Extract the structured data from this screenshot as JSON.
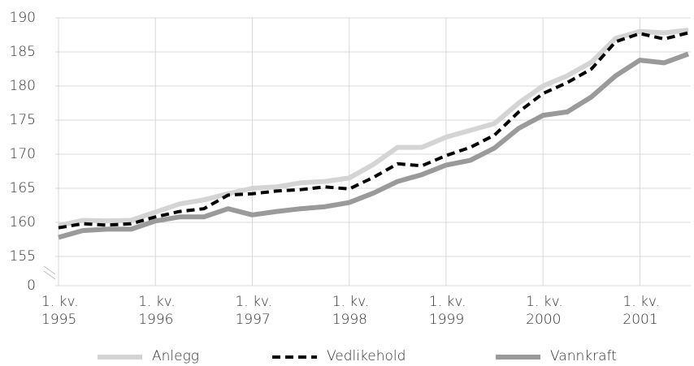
{
  "chart_data": {
    "type": "line",
    "categories": [
      [
        "1. kv.",
        "1995"
      ],
      null,
      null,
      null,
      [
        "1. kv.",
        "1996"
      ],
      null,
      null,
      null,
      [
        "1. kv.",
        "1997"
      ],
      null,
      null,
      null,
      [
        "1. kv.",
        "1998"
      ],
      null,
      null,
      null,
      [
        "1. kv.",
        "1999"
      ],
      null,
      null,
      null,
      [
        "1. kv.",
        "2000"
      ],
      null,
      null,
      null,
      [
        "1. kv.",
        "2001"
      ],
      null,
      null
    ],
    "series": [
      {
        "name": "Anlegg",
        "color": "#d4d4d4",
        "dashed": false,
        "values": [
          159.5,
          160.3,
          160.2,
          160.3,
          161.5,
          162.7,
          163.3,
          164.2,
          165,
          165.2,
          165.8,
          166,
          166.5,
          168.5,
          171,
          171,
          172.5,
          173.5,
          174.5,
          177.5,
          180,
          181.5,
          183.5,
          187,
          188,
          187.8,
          188.2
        ]
      },
      {
        "name": "Vedlikehold",
        "color": "#000000",
        "dashed": true,
        "values": [
          159.2,
          159.8,
          159.6,
          159.8,
          160.8,
          161.6,
          162,
          164,
          164.2,
          164.6,
          164.8,
          165.2,
          164.9,
          166.6,
          168.6,
          168.3,
          169.8,
          171,
          172.8,
          176.2,
          178.9,
          180.5,
          182.5,
          186.5,
          187.7,
          186.9,
          187.8
        ]
      },
      {
        "name": "Vannkraft",
        "color": "#9a9a9a",
        "dashed": false,
        "values": [
          157.8,
          158.8,
          159,
          159,
          160.2,
          160.8,
          160.8,
          162,
          161.1,
          161.6,
          162,
          162.3,
          162.9,
          164.3,
          166,
          167,
          168.4,
          169.1,
          170.9,
          173.8,
          175.7,
          176.2,
          178.4,
          181.5,
          183.8,
          183.4,
          184.7
        ]
      }
    ],
    "ylim": [
      0,
      190
    ],
    "axis_break": [
      0,
      155
    ],
    "yticks": [
      0,
      155,
      160,
      165,
      170,
      175,
      180,
      185,
      190
    ],
    "grid": true
  }
}
